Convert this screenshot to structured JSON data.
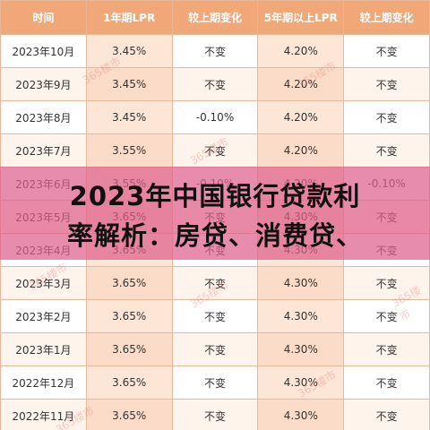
{
  "table": {
    "header": [
      "时间",
      "1年期LPR",
      "较上期变化",
      "5年期以上LPR",
      "较上期变化"
    ],
    "rows": [
      [
        "2023年10月",
        "3.45%",
        "不变",
        "4.20%",
        "不变"
      ],
      [
        "2023年9月",
        "3.45%",
        "不变",
        "4.20%",
        "不变"
      ],
      [
        "2023年8月",
        "3.45%",
        "-0.10%",
        "4.20%",
        "不变"
      ],
      [
        "2023年7月",
        "3.55%",
        "不变",
        "4.20%",
        "不变"
      ],
      [
        "2023年6月",
        "3.55%",
        "-0.10%",
        "4.20%",
        "-0.10%"
      ],
      [
        "2023年5月",
        "3.65%",
        "不变",
        "4.30%",
        "不变"
      ],
      [
        "2023年4月",
        "3.65%",
        "不变",
        "4.30%",
        "不变"
      ],
      [
        "2023年3月",
        "3.65%",
        "不变",
        "4.30%",
        "不变"
      ],
      [
        "2023年2月",
        "3.65%",
        "不变",
        "4.30%",
        "不变"
      ],
      [
        "2023年1月",
        "3.65%",
        "不变",
        "4.30%",
        "不变"
      ],
      [
        "2022年12月",
        "3.65%",
        "不变",
        "4.30%",
        "不变"
      ],
      [
        "2022年11月",
        "3.65%",
        "不变",
        "4.30%",
        "不变"
      ]
    ]
  },
  "overlay": {
    "title_lines": [
      "2023年中国银行贷款利",
      "率解析：房贷、消费贷、"
    ]
  },
  "watermark": "365楼市"
}
